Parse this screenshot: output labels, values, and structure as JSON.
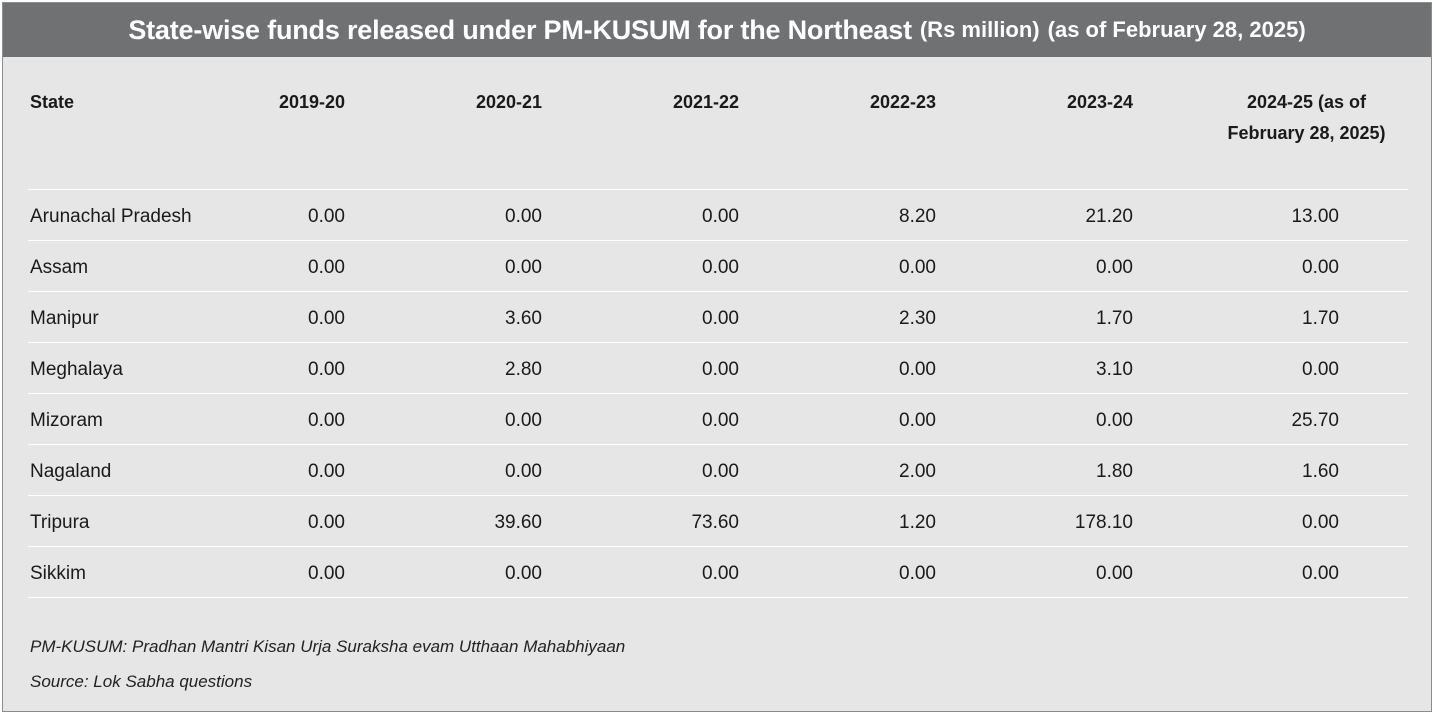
{
  "title": {
    "main": "State-wise funds released under PM-KUSUM for the Northeast",
    "unit": "(Rs million)",
    "as_of": "(as of February 28, 2025)"
  },
  "chart_data": {
    "type": "table",
    "columns": [
      "State",
      "2019-20",
      "2020-21",
      "2021-22",
      "2022-23",
      "2023-24",
      "2024-25 (as of February 28, 2025)"
    ],
    "rows": [
      {
        "state": "Arunachal Pradesh",
        "values": [
          "0.00",
          "0.00",
          "0.00",
          "8.20",
          "21.20",
          "13.00"
        ]
      },
      {
        "state": "Assam",
        "values": [
          "0.00",
          "0.00",
          "0.00",
          "0.00",
          "0.00",
          "0.00"
        ]
      },
      {
        "state": "Manipur",
        "values": [
          "0.00",
          "3.60",
          "0.00",
          "2.30",
          "1.70",
          "1.70"
        ]
      },
      {
        "state": "Meghalaya",
        "values": [
          "0.00",
          "2.80",
          "0.00",
          "0.00",
          "3.10",
          "0.00"
        ]
      },
      {
        "state": "Mizoram",
        "values": [
          "0.00",
          "0.00",
          "0.00",
          "0.00",
          "0.00",
          "25.70"
        ]
      },
      {
        "state": "Nagaland",
        "values": [
          "0.00",
          "0.00",
          "0.00",
          "2.00",
          "1.80",
          "1.60"
        ]
      },
      {
        "state": "Tripura",
        "values": [
          "0.00",
          "39.60",
          "73.60",
          "1.20",
          "178.10",
          "0.00"
        ]
      },
      {
        "state": "Sikkim",
        "values": [
          "0.00",
          "0.00",
          "0.00",
          "0.00",
          "0.00",
          "0.00"
        ]
      }
    ]
  },
  "notes": {
    "abbreviation": "PM-KUSUM: Pradhan Mantri Kisan Urja Suraksha evam Utthaan Mahabhiyaan",
    "source": "Source: Lok Sabha questions"
  }
}
